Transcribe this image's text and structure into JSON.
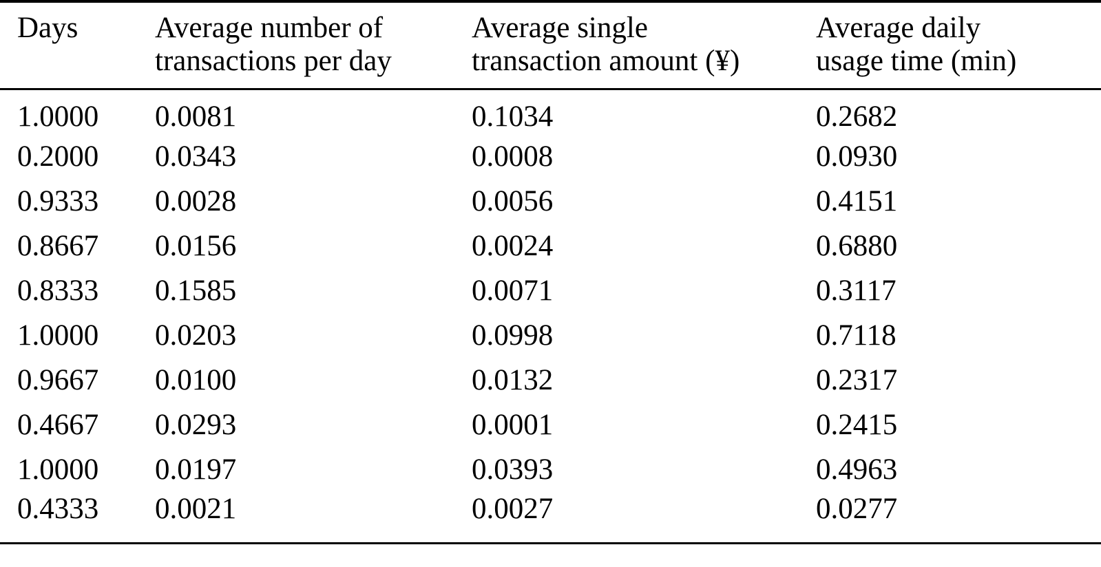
{
  "table": {
    "headers": [
      {
        "lines": [
          "Days"
        ]
      },
      {
        "lines": [
          "Average number of",
          "transactions per day"
        ]
      },
      {
        "lines": [
          "Average single",
          "transaction amount (¥)"
        ]
      },
      {
        "lines": [
          "Average daily",
          "usage time (min)"
        ]
      }
    ],
    "rows": [
      [
        "1.0000",
        "0.0081",
        "0.1034",
        "0.2682"
      ],
      [
        "0.2000",
        "0.0343",
        "0.0008",
        "0.0930"
      ],
      [
        "0.9333",
        "0.0028",
        "0.0056",
        "0.4151"
      ],
      [
        "0.8667",
        "0.0156",
        "0.0024",
        "0.6880"
      ],
      [
        "0.8333",
        "0.1585",
        "0.0071",
        "0.3117"
      ],
      [
        "1.0000",
        "0.0203",
        "0.0998",
        "0.7118"
      ],
      [
        "0.9667",
        "0.0100",
        "0.0132",
        "0.2317"
      ],
      [
        "0.4667",
        "0.0293",
        "0.0001",
        "0.2415"
      ],
      [
        "1.0000",
        "0.0197",
        "0.0393",
        "0.4963"
      ],
      [
        "0.4333",
        "0.0021",
        "0.0027",
        "0.0277"
      ]
    ]
  },
  "colors": {
    "text": "#000000",
    "background": "#ffffff",
    "rule": "#000000"
  },
  "chart_data": {
    "type": "table",
    "columns": [
      "Days",
      "Average number of transactions per day",
      "Average single transaction amount (¥)",
      "Average daily usage time (min)"
    ],
    "rows": [
      [
        1.0,
        0.0081,
        0.1034,
        0.2682
      ],
      [
        0.2,
        0.0343,
        0.0008,
        0.093
      ],
      [
        0.9333,
        0.0028,
        0.0056,
        0.4151
      ],
      [
        0.8667,
        0.0156,
        0.0024,
        0.688
      ],
      [
        0.8333,
        0.1585,
        0.0071,
        0.3117
      ],
      [
        1.0,
        0.0203,
        0.0998,
        0.7118
      ],
      [
        0.9667,
        0.01,
        0.0132,
        0.2317
      ],
      [
        0.4667,
        0.0293,
        0.0001,
        0.2415
      ],
      [
        1.0,
        0.0197,
        0.0393,
        0.4963
      ],
      [
        0.4333,
        0.0021,
        0.0027,
        0.0277
      ]
    ]
  }
}
